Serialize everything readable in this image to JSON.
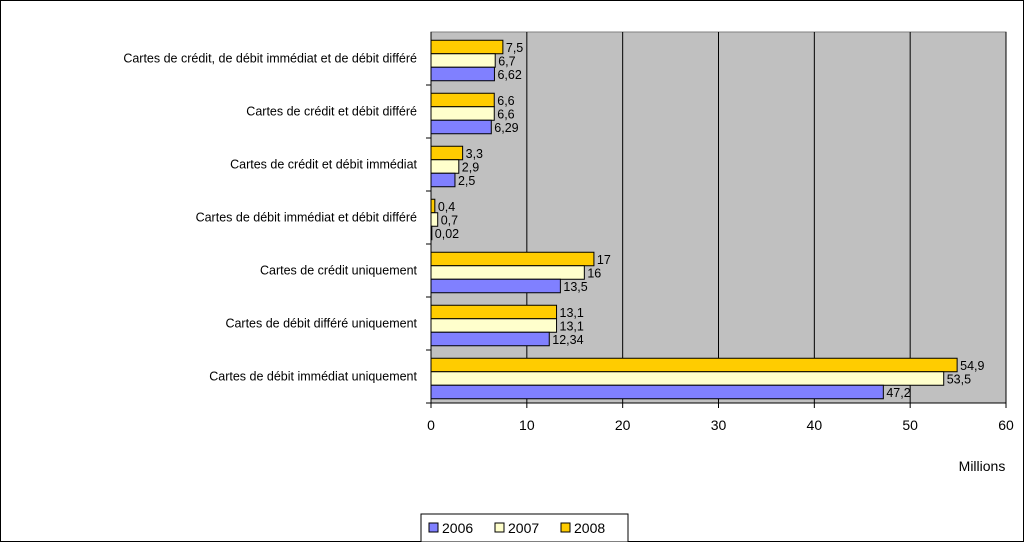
{
  "chart_data": {
    "type": "bar",
    "orientation": "horizontal",
    "categories": [
      "Cartes de crédit, de débit immédiat et de débit différé",
      "Cartes de crédit et débit différé",
      "Cartes de crédit et débit immédiat",
      "Cartes de débit immédiat et débit différé",
      "Cartes de crédit uniquement",
      "Cartes de débit différé uniquement",
      "Cartes de débit immédiat uniquement"
    ],
    "series": [
      {
        "name": "2006",
        "color": "#8080ff",
        "values": [
          6.62,
          6.29,
          2.5,
          0.02,
          13.5,
          12.34,
          47.2
        ],
        "labels": [
          "6,62",
          "6,29",
          "2,5",
          "0,02",
          "13,5",
          "12,34",
          "47,2"
        ]
      },
      {
        "name": "2007",
        "color": "#ffffcc",
        "values": [
          6.7,
          6.6,
          2.9,
          0.7,
          16,
          13.1,
          53.5
        ],
        "labels": [
          "6,7",
          "6,6",
          "2,9",
          "0,7",
          "16",
          "13,1",
          "53,5"
        ]
      },
      {
        "name": "2008",
        "color": "#ffcc00",
        "values": [
          7.5,
          6.6,
          3.3,
          0.4,
          17,
          13.1,
          54.9
        ],
        "labels": [
          "7,5",
          "6,6",
          "3,3",
          "0,4",
          "17",
          "13,1",
          "54,9"
        ]
      }
    ],
    "xlabel": "Millions",
    "xlim": [
      0,
      60
    ],
    "xticks": [
      0,
      10,
      20,
      30,
      40,
      50,
      60
    ],
    "plot_background": "#c0c0c0",
    "grid": true,
    "legend_position": "bottom-center"
  }
}
